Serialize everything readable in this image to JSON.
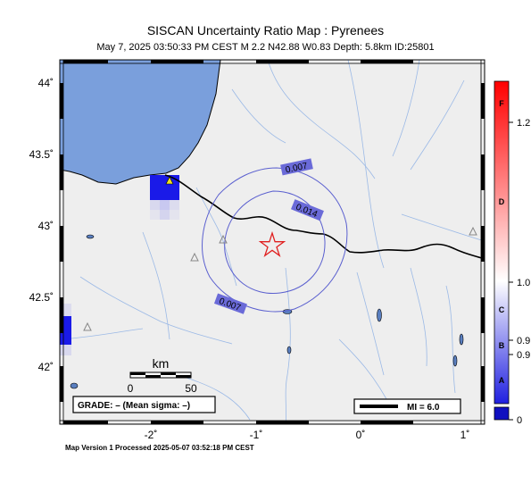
{
  "header": {
    "title": "SISCAN Uncertainty Ratio Map : Pyrenees",
    "subtitle": "May  7, 2025 03:50:33 PM CEST   M 2.2   N42.88 W0.83   Depth: 5.8km   ID:25801"
  },
  "axes": {
    "y_ticks": [
      "44˚",
      "43.5˚",
      "43˚",
      "42.5˚",
      "42˚"
    ],
    "x_ticks": [
      "-2˚",
      "-1˚",
      "0˚",
      "1˚"
    ]
  },
  "contours": [
    "0.007",
    "0.014",
    "0.007"
  ],
  "scale_bar": {
    "unit": "km",
    "min": "0",
    "max": "50"
  },
  "grade_box": "GRADE: – (Mean sigma: –)",
  "mi_box": "MI = 6.0",
  "colorbar": {
    "top_label": "1.2",
    "mid_label": "1.0",
    "low_label_1": "0.9",
    "low_label_2": "0.9",
    "zero_label": "0",
    "grades": [
      "F",
      "D",
      "C",
      "B",
      "A"
    ]
  },
  "footer": "Map Version 1 Processed 2025-05-07 03:52:18 PM CEST",
  "colors": {
    "sea": "#7a9fdc",
    "land": "#eeeeee",
    "contour": "#5a5fcf",
    "epicenter": "#e02020"
  }
}
